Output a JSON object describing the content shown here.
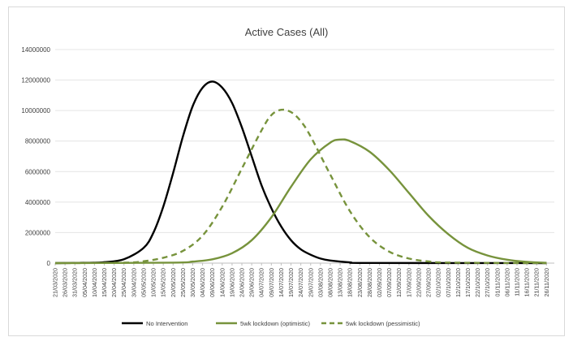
{
  "chart_data": {
    "type": "line",
    "title": "Active Cases (All)",
    "xlabel": "",
    "ylabel": "",
    "ylim": [
      0,
      14000000
    ],
    "yticks": [
      "0",
      "2000000",
      "4000000",
      "6000000",
      "8000000",
      "10000000",
      "12000000",
      "14000000"
    ],
    "grid": true,
    "legend_position": "bottom",
    "x_tick_labels": [
      "21/03/2020",
      "26/03/2020",
      "31/03/2020",
      "05/04/2020",
      "10/04/2020",
      "15/04/2020",
      "20/04/2020",
      "25/04/2020",
      "30/04/2020",
      "05/05/2020",
      "10/05/2020",
      "15/05/2020",
      "20/05/2020",
      "25/05/2020",
      "30/05/2020",
      "04/06/2020",
      "09/06/2020",
      "14/06/2020",
      "19/06/2020",
      "24/06/2020",
      "29/06/2020",
      "04/07/2020",
      "09/07/2020",
      "14/07/2020",
      "19/07/2020",
      "24/07/2020",
      "29/07/2020",
      "03/08/2020",
      "08/08/2020",
      "13/08/2020",
      "18/08/2020",
      "23/08/2020",
      "28/08/2020",
      "02/09/2020",
      "07/09/2020",
      "12/09/2020",
      "17/09/2020",
      "22/09/2020",
      "27/09/2020",
      "02/10/2020",
      "07/10/2020",
      "12/10/2020",
      "17/10/2020",
      "22/10/2020",
      "27/10/2020",
      "01/11/2020",
      "06/11/2020",
      "11/11/2020",
      "16/11/2020",
      "21/11/2020",
      "26/11/2020"
    ],
    "series": [
      {
        "name": "No Intervention",
        "color": "#000000",
        "style": "solid",
        "points": [
          [
            "21/03/2020",
            0
          ],
          [
            "05/04/2020",
            20000
          ],
          [
            "15/04/2020",
            60000
          ],
          [
            "25/04/2020",
            250000
          ],
          [
            "05/05/2020",
            1000000
          ],
          [
            "10/05/2020",
            2000000
          ],
          [
            "15/05/2020",
            3700000
          ],
          [
            "20/05/2020",
            5900000
          ],
          [
            "25/05/2020",
            8300000
          ],
          [
            "30/05/2020",
            10300000
          ],
          [
            "04/06/2020",
            11500000
          ],
          [
            "09/06/2020",
            11900000
          ],
          [
            "14/06/2020",
            11500000
          ],
          [
            "19/06/2020",
            10500000
          ],
          [
            "24/06/2020",
            8900000
          ],
          [
            "29/06/2020",
            7000000
          ],
          [
            "04/07/2020",
            5100000
          ],
          [
            "09/07/2020",
            3600000
          ],
          [
            "14/07/2020",
            2400000
          ],
          [
            "19/07/2020",
            1500000
          ],
          [
            "24/07/2020",
            900000
          ],
          [
            "29/07/2020",
            550000
          ],
          [
            "03/08/2020",
            300000
          ],
          [
            "08/08/2020",
            170000
          ],
          [
            "18/08/2020",
            50000
          ],
          [
            "28/08/2020",
            10000
          ],
          [
            "26/11/2020",
            0
          ]
        ]
      },
      {
        "name": "5wk lockdown (optimistic)",
        "color": "#77933c",
        "style": "solid",
        "points": [
          [
            "21/03/2020",
            0
          ],
          [
            "20/05/2020",
            30000
          ],
          [
            "30/05/2020",
            100000
          ],
          [
            "09/06/2020",
            250000
          ],
          [
            "19/06/2020",
            650000
          ],
          [
            "29/06/2020",
            1500000
          ],
          [
            "09/07/2020",
            3000000
          ],
          [
            "19/07/2020",
            5000000
          ],
          [
            "29/07/2020",
            6800000
          ],
          [
            "08/08/2020",
            7900000
          ],
          [
            "13/08/2020",
            8100000
          ],
          [
            "18/08/2020",
            8000000
          ],
          [
            "28/08/2020",
            7300000
          ],
          [
            "07/09/2020",
            6100000
          ],
          [
            "17/09/2020",
            4600000
          ],
          [
            "27/09/2020",
            3100000
          ],
          [
            "07/10/2020",
            1900000
          ],
          [
            "17/10/2020",
            1000000
          ],
          [
            "27/10/2020",
            500000
          ],
          [
            "06/11/2020",
            220000
          ],
          [
            "16/11/2020",
            80000
          ],
          [
            "26/11/2020",
            20000
          ]
        ]
      },
      {
        "name": "5wk lockdown (pessimistic)",
        "color": "#77933c",
        "style": "dashed",
        "points": [
          [
            "21/03/2020",
            0
          ],
          [
            "25/04/2020",
            30000
          ],
          [
            "05/05/2020",
            120000
          ],
          [
            "15/05/2020",
            350000
          ],
          [
            "25/05/2020",
            800000
          ],
          [
            "04/06/2020",
            1800000
          ],
          [
            "14/06/2020",
            3700000
          ],
          [
            "24/06/2020",
            6200000
          ],
          [
            "04/07/2020",
            8700000
          ],
          [
            "09/07/2020",
            9700000
          ],
          [
            "14/07/2020",
            10050000
          ],
          [
            "19/07/2020",
            9900000
          ],
          [
            "24/07/2020",
            9300000
          ],
          [
            "29/07/2020",
            8300000
          ],
          [
            "08/08/2020",
            5800000
          ],
          [
            "18/08/2020",
            3400000
          ],
          [
            "28/08/2020",
            1700000
          ],
          [
            "07/09/2020",
            750000
          ],
          [
            "17/09/2020",
            300000
          ],
          [
            "27/09/2020",
            110000
          ],
          [
            "07/10/2020",
            35000
          ],
          [
            "26/11/2020",
            0
          ]
        ]
      }
    ]
  }
}
